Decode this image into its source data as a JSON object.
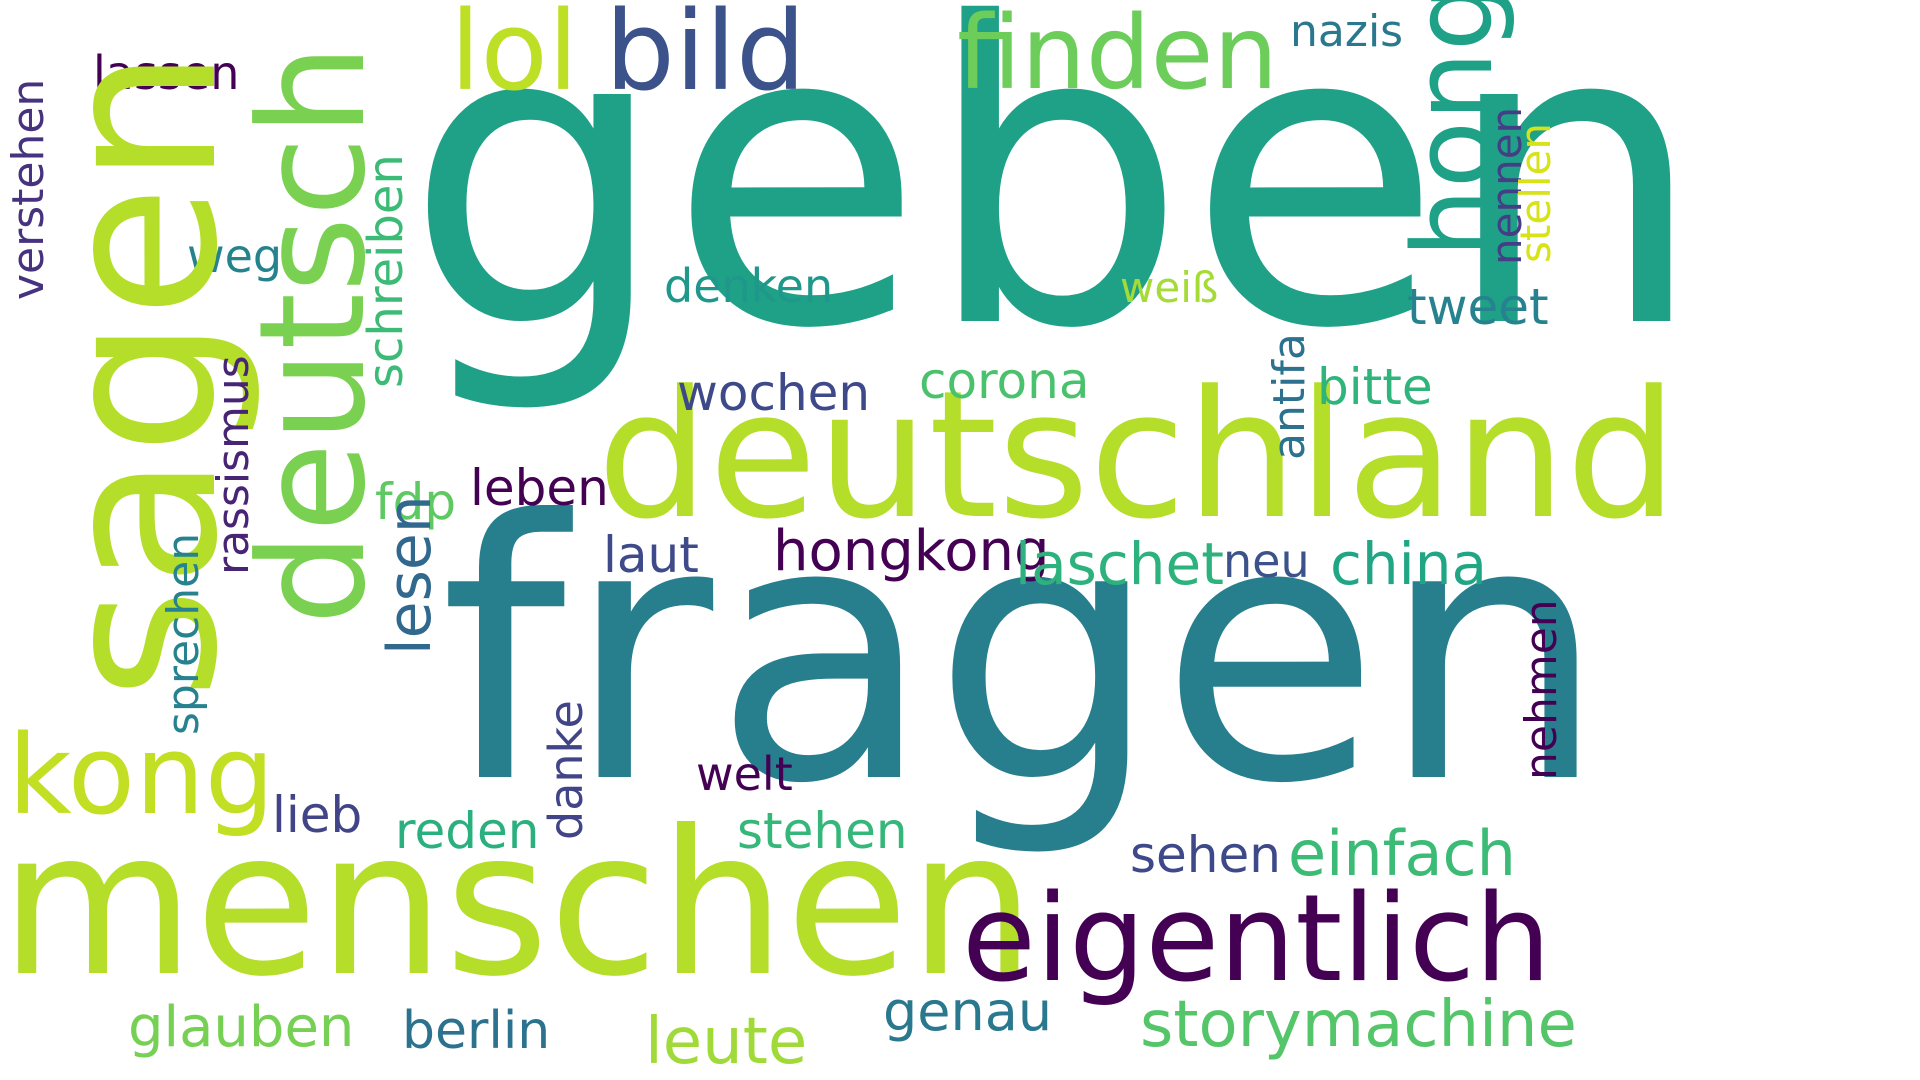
{
  "words": [
    {
      "id": "geben",
      "text": "geben",
      "color": "#1fa187"
    },
    {
      "id": "fragen",
      "text": "fragen",
      "color": "#277f8e"
    },
    {
      "id": "menschen",
      "text": "menschen",
      "color": "#b5de2b"
    },
    {
      "id": "sagen",
      "text": "sagen",
      "color": "#b5de2b"
    },
    {
      "id": "deutschland",
      "text": "deutschland",
      "color": "#b5de2b"
    },
    {
      "id": "deutsch",
      "text": "deutsch",
      "color": "#7ad151"
    },
    {
      "id": "eigentlich",
      "text": "eigentlich",
      "color": "#440154"
    },
    {
      "id": "kong",
      "text": "kong",
      "color": "#c2df23"
    },
    {
      "id": "hong",
      "text": "hong",
      "color": "#1fa187"
    },
    {
      "id": "finden",
      "text": "finden",
      "color": "#6ccd5a"
    },
    {
      "id": "bild",
      "text": "bild",
      "color": "#3b528b"
    },
    {
      "id": "lol",
      "text": "lol",
      "color": "#bddf26"
    },
    {
      "id": "storymachine",
      "text": "storymachine",
      "color": "#54c568"
    },
    {
      "id": "einfach",
      "text": "einfach",
      "color": "#3bbb75"
    },
    {
      "id": "leute",
      "text": "leute",
      "color": "#a0da39"
    },
    {
      "id": "glauben",
      "text": "glauben",
      "color": "#75d054"
    },
    {
      "id": "hongkong",
      "text": "hongkong",
      "color": "#440154"
    },
    {
      "id": "laschet",
      "text": "laschet",
      "color": "#2db27d"
    },
    {
      "id": "china",
      "text": "china",
      "color": "#21a685"
    },
    {
      "id": "lesen",
      "text": "lesen",
      "color": "#31688e"
    },
    {
      "id": "genau",
      "text": "genau",
      "color": "#2a788e"
    },
    {
      "id": "berlin",
      "text": "berlin",
      "color": "#2c728e"
    },
    {
      "id": "corona",
      "text": "corona",
      "color": "#4ac16d"
    },
    {
      "id": "wochen",
      "text": "wochen",
      "color": "#3e4989"
    },
    {
      "id": "bitte",
      "text": "bitte",
      "color": "#2fb47c"
    },
    {
      "id": "tweet",
      "text": "tweet",
      "color": "#26828e"
    },
    {
      "id": "reden",
      "text": "reden",
      "color": "#2ab07f"
    },
    {
      "id": "stehen",
      "text": "stehen",
      "color": "#35b779"
    },
    {
      "id": "sehen",
      "text": "sehen",
      "color": "#3e4989"
    },
    {
      "id": "lieb",
      "text": "lieb",
      "color": "#414487"
    },
    {
      "id": "laut",
      "text": "laut",
      "color": "#3e4a89"
    },
    {
      "id": "leben",
      "text": "leben",
      "color": "#440154"
    },
    {
      "id": "fdp",
      "text": "fdp",
      "color": "#5ec962"
    },
    {
      "id": "welt",
      "text": "welt",
      "color": "#440154"
    },
    {
      "id": "denken",
      "text": "denken",
      "color": "#1f988b"
    },
    {
      "id": "lassen",
      "text": "lassen",
      "color": "#440154"
    },
    {
      "id": "nazis",
      "text": "nazis",
      "color": "#2a788e"
    },
    {
      "id": "weg",
      "text": "weg",
      "color": "#25838e"
    },
    {
      "id": "neu",
      "text": "neu",
      "color": "#3b528b"
    },
    {
      "id": "weiss",
      "text": "weiß",
      "color": "#a5db36"
    },
    {
      "id": "schreiben",
      "text": "schreiben",
      "color": "#3bbb75"
    },
    {
      "id": "verstehen",
      "text": "verstehen",
      "color": "#46327e"
    },
    {
      "id": "rassismus",
      "text": "rassismus",
      "color": "#482475"
    },
    {
      "id": "sprechen",
      "text": "sprechen",
      "color": "#26828e"
    },
    {
      "id": "danke",
      "text": "danke",
      "color": "#414487"
    },
    {
      "id": "antifa",
      "text": "antifa",
      "color": "#2c728e"
    },
    {
      "id": "nennen",
      "text": "nennen",
      "color": "#433e85"
    },
    {
      "id": "stellen",
      "text": "stellen",
      "color": "#d8e219"
    },
    {
      "id": "nehmen",
      "text": "nehmen",
      "color": "#440154"
    }
  ]
}
